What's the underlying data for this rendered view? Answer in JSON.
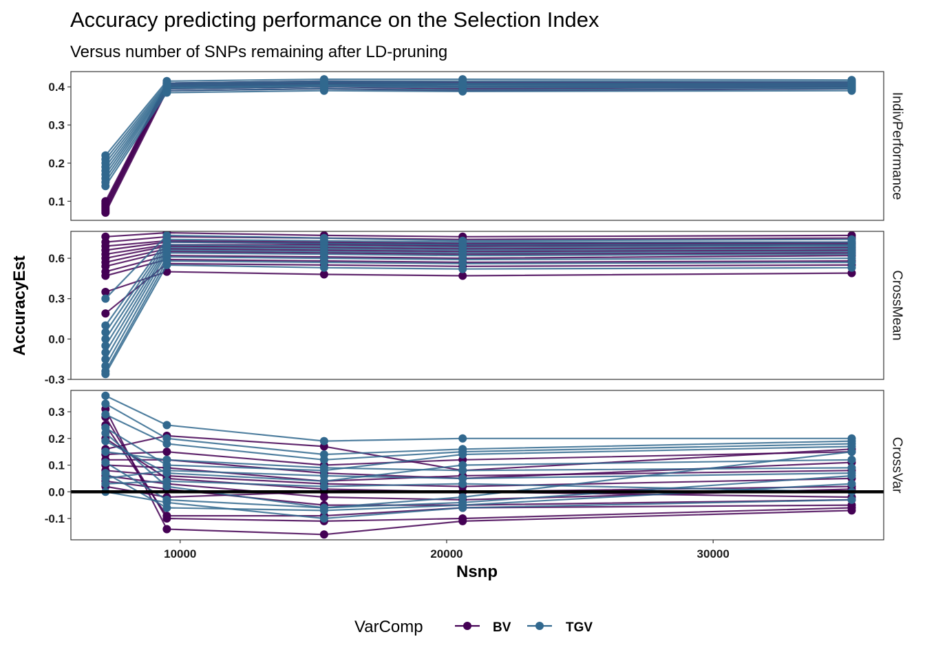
{
  "chart_data": {
    "type": "line",
    "title": "Accuracy predicting performance on the Selection Index",
    "subtitle": "Versus number of SNPs remaining after LD-pruning",
    "xlabel": "Nsnp",
    "ylabel": "AccuracyEst",
    "x": [
      7200,
      9500,
      15400,
      20600,
      35200
    ],
    "xlim": [
      5900,
      36400
    ],
    "xticks": [
      10000,
      20000,
      30000
    ],
    "xtick_labels": [
      "10000",
      "20000",
      "30000"
    ],
    "legend": {
      "title": "VarComp",
      "position": "bottom",
      "entries": [
        "BV",
        "TGV"
      ]
    },
    "colors": {
      "BV": "#440154",
      "TGV": "#31688e"
    },
    "panels": [
      {
        "strip_label": "IndivPerformance",
        "ylim": [
          0.05,
          0.44
        ],
        "yticks": [
          0.1,
          0.2,
          0.3,
          0.4
        ],
        "ytick_labels": [
          "0.1",
          "0.2",
          "0.3",
          "0.4"
        ],
        "reference_line": null,
        "series": [
          {
            "group": "BV",
            "values": [
              0.07,
              0.39,
              0.395,
              0.39,
              0.395
            ]
          },
          {
            "group": "BV",
            "values": [
              0.075,
              0.395,
              0.4,
              0.395,
              0.4
            ]
          },
          {
            "group": "BV",
            "values": [
              0.08,
              0.4,
              0.405,
              0.4,
              0.402
            ]
          },
          {
            "group": "BV",
            "values": [
              0.085,
              0.402,
              0.408,
              0.405,
              0.405
            ]
          },
          {
            "group": "BV",
            "values": [
              0.09,
              0.405,
              0.41,
              0.408,
              0.407
            ]
          },
          {
            "group": "BV",
            "values": [
              0.095,
              0.408,
              0.412,
              0.41,
              0.41
            ]
          },
          {
            "group": "BV",
            "values": [
              0.1,
              0.41,
              0.415,
              0.412,
              0.412
            ]
          },
          {
            "group": "TGV",
            "values": [
              0.14,
              0.385,
              0.39,
              0.388,
              0.39
            ]
          },
          {
            "group": "TGV",
            "values": [
              0.15,
              0.39,
              0.395,
              0.392,
              0.395
            ]
          },
          {
            "group": "TGV",
            "values": [
              0.16,
              0.395,
              0.4,
              0.398,
              0.398
            ]
          },
          {
            "group": "TGV",
            "values": [
              0.17,
              0.398,
              0.403,
              0.401,
              0.401
            ]
          },
          {
            "group": "TGV",
            "values": [
              0.18,
              0.4,
              0.405,
              0.405,
              0.404
            ]
          },
          {
            "group": "TGV",
            "values": [
              0.19,
              0.403,
              0.408,
              0.407,
              0.407
            ]
          },
          {
            "group": "TGV",
            "values": [
              0.2,
              0.406,
              0.412,
              0.41,
              0.41
            ]
          },
          {
            "group": "TGV",
            "values": [
              0.21,
              0.41,
              0.415,
              0.415,
              0.414
            ]
          },
          {
            "group": "TGV",
            "values": [
              0.22,
              0.415,
              0.42,
              0.42,
              0.418
            ]
          }
        ]
      },
      {
        "strip_label": "CrossMean",
        "ylim": [
          -0.3,
          0.8
        ],
        "yticks": [
          -0.3,
          0.0,
          0.3,
          0.6
        ],
        "ytick_labels": [
          "-0.3",
          "0.0",
          "0.3",
          "0.6"
        ],
        "reference_line": null,
        "series": [
          {
            "group": "BV",
            "values": [
              0.76,
              0.79,
              0.77,
              0.76,
              0.77
            ]
          },
          {
            "group": "BV",
            "values": [
              0.72,
              0.76,
              0.75,
              0.74,
              0.75
            ]
          },
          {
            "group": "BV",
            "values": [
              0.69,
              0.73,
              0.72,
              0.71,
              0.72
            ]
          },
          {
            "group": "BV",
            "values": [
              0.66,
              0.72,
              0.71,
              0.7,
              0.71
            ]
          },
          {
            "group": "BV",
            "values": [
              0.63,
              0.7,
              0.7,
              0.69,
              0.7
            ]
          },
          {
            "group": "BV",
            "values": [
              0.6,
              0.69,
              0.68,
              0.67,
              0.68
            ]
          },
          {
            "group": "BV",
            "values": [
              0.57,
              0.67,
              0.66,
              0.65,
              0.66
            ]
          },
          {
            "group": "BV",
            "values": [
              0.54,
              0.65,
              0.64,
              0.63,
              0.64
            ]
          },
          {
            "group": "BV",
            "values": [
              0.5,
              0.62,
              0.61,
              0.6,
              0.62
            ]
          },
          {
            "group": "BV",
            "values": [
              0.47,
              0.59,
              0.58,
              0.57,
              0.58
            ]
          },
          {
            "group": "BV",
            "values": [
              0.35,
              0.5,
              0.48,
              0.47,
              0.49
            ]
          },
          {
            "group": "BV",
            "values": [
              0.19,
              0.56,
              0.55,
              0.54,
              0.55
            ]
          },
          {
            "group": "TGV",
            "values": [
              0.3,
              0.77,
              0.75,
              0.73,
              0.74
            ]
          },
          {
            "group": "TGV",
            "values": [
              0.1,
              0.74,
              0.73,
              0.72,
              0.72
            ]
          },
          {
            "group": "TGV",
            "values": [
              0.05,
              0.72,
              0.71,
              0.7,
              0.7
            ]
          },
          {
            "group": "TGV",
            "values": [
              0.0,
              0.7,
              0.69,
              0.68,
              0.69
            ]
          },
          {
            "group": "TGV",
            "values": [
              -0.05,
              0.68,
              0.67,
              0.66,
              0.67
            ]
          },
          {
            "group": "TGV",
            "values": [
              -0.1,
              0.66,
              0.65,
              0.64,
              0.65
            ]
          },
          {
            "group": "TGV",
            "values": [
              -0.15,
              0.64,
              0.63,
              0.62,
              0.63
            ]
          },
          {
            "group": "TGV",
            "values": [
              -0.2,
              0.61,
              0.6,
              0.59,
              0.6
            ]
          },
          {
            "group": "TGV",
            "values": [
              -0.24,
              0.58,
              0.57,
              0.56,
              0.57
            ]
          },
          {
            "group": "TGV",
            "values": [
              -0.26,
              0.55,
              0.53,
              0.52,
              0.53
            ]
          }
        ]
      },
      {
        "strip_label": "CrossVar",
        "ylim": [
          -0.18,
          0.38
        ],
        "yticks": [
          -0.1,
          0.0,
          0.1,
          0.2,
          0.3
        ],
        "ytick_labels": [
          "-0.1",
          "0.0",
          "0.1",
          "0.2",
          "0.3"
        ],
        "reference_line": 0.0,
        "series": [
          {
            "group": "BV",
            "values": [
              0.31,
              -0.14,
              -0.16,
              -0.11,
              -0.07
            ]
          },
          {
            "group": "BV",
            "values": [
              0.28,
              -0.1,
              -0.11,
              -0.1,
              -0.06
            ]
          },
          {
            "group": "BV",
            "values": [
              0.25,
              -0.09,
              -0.09,
              -0.06,
              -0.05
            ]
          },
          {
            "group": "BV",
            "values": [
              0.2,
              0.05,
              0.01,
              0.0,
              -0.02
            ]
          },
          {
            "group": "BV",
            "values": [
              0.16,
              0.21,
              0.17,
              0.08,
              0.16
            ]
          },
          {
            "group": "BV",
            "values": [
              0.14,
              0.15,
              0.1,
              0.12,
              0.15
            ]
          },
          {
            "group": "BV",
            "values": [
              0.12,
              0.12,
              0.07,
              0.05,
              0.11
            ]
          },
          {
            "group": "BV",
            "values": [
              0.1,
              0.09,
              0.04,
              0.06,
              0.08
            ]
          },
          {
            "group": "BV",
            "values": [
              0.08,
              0.06,
              0.03,
              0.02,
              0.05
            ]
          },
          {
            "group": "BV",
            "values": [
              0.06,
              0.03,
              -0.02,
              -0.03,
              0.01
            ]
          },
          {
            "group": "BV",
            "values": [
              0.04,
              0.01,
              -0.05,
              -0.05,
              -0.03
            ]
          },
          {
            "group": "BV",
            "values": [
              0.02,
              -0.02,
              0.0,
              0.0,
              0.02
            ]
          },
          {
            "group": "TGV",
            "values": [
              0.36,
              0.25,
              0.19,
              0.2,
              0.2
            ]
          },
          {
            "group": "TGV",
            "values": [
              0.33,
              0.2,
              0.14,
              0.16,
              0.19
            ]
          },
          {
            "group": "TGV",
            "values": [
              0.29,
              0.18,
              0.12,
              0.15,
              0.18
            ]
          },
          {
            "group": "TGV",
            "values": [
              0.24,
              0.1,
              0.08,
              0.14,
              0.17
            ]
          },
          {
            "group": "TGV",
            "values": [
              0.22,
              0.02,
              -0.06,
              -0.02,
              0.15
            ]
          },
          {
            "group": "TGV",
            "values": [
              0.19,
              0.07,
              0.04,
              0.1,
              0.12
            ]
          },
          {
            "group": "TGV",
            "values": [
              0.15,
              0.12,
              0.09,
              0.08,
              0.09
            ]
          },
          {
            "group": "TGV",
            "values": [
              0.11,
              -0.03,
              -0.06,
              -0.04,
              0.06
            ]
          },
          {
            "group": "TGV",
            "values": [
              0.07,
              -0.06,
              -0.07,
              -0.05,
              0.03
            ]
          },
          {
            "group": "TGV",
            "values": [
              0.03,
              0.04,
              0.02,
              0.03,
              0.0
            ]
          },
          {
            "group": "TGV",
            "values": [
              0.0,
              -0.04,
              -0.1,
              -0.06,
              -0.03
            ]
          },
          {
            "group": "TGV",
            "values": [
              0.05,
              0.08,
              0.06,
              0.05,
              0.07
            ]
          }
        ]
      }
    ]
  }
}
